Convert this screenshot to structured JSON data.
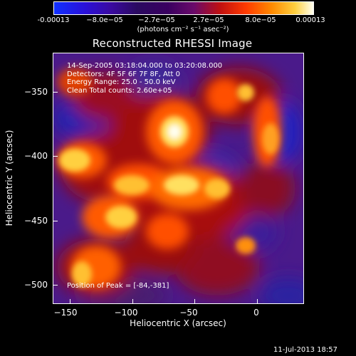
{
  "colorbar": {
    "ticks": [
      "-0.00013",
      "−8.0e−05",
      "−2.7e−05",
      "2.7e−05",
      "8.0e−05",
      "0.00013"
    ],
    "units": "(photons cm⁻² s⁻¹ asec⁻²)"
  },
  "title": "Reconstructed RHESSI Image",
  "overlay": {
    "time_range": "14-Sep-2005 03:18:04.000 to 03:20:08.000",
    "detectors": "Detectors: 4F 5F 6F 7F 8F, Att 0",
    "energy": "Energy Range: 25.0 - 50.0 keV",
    "clean": "Clean    Total counts: 2.60e+05",
    "peak": "Position of Peak = [-84,-381]"
  },
  "axes": {
    "xlabel": "Heliocentric X (arcsec)",
    "ylabel": "Heliocentric Y (arcsec)",
    "xticks": [
      "−150",
      "−100",
      "−50",
      "0"
    ],
    "yticks": [
      "−350",
      "−400",
      "−450",
      "−500"
    ]
  },
  "timestamp": "11-Jul-2013 18:57"
}
